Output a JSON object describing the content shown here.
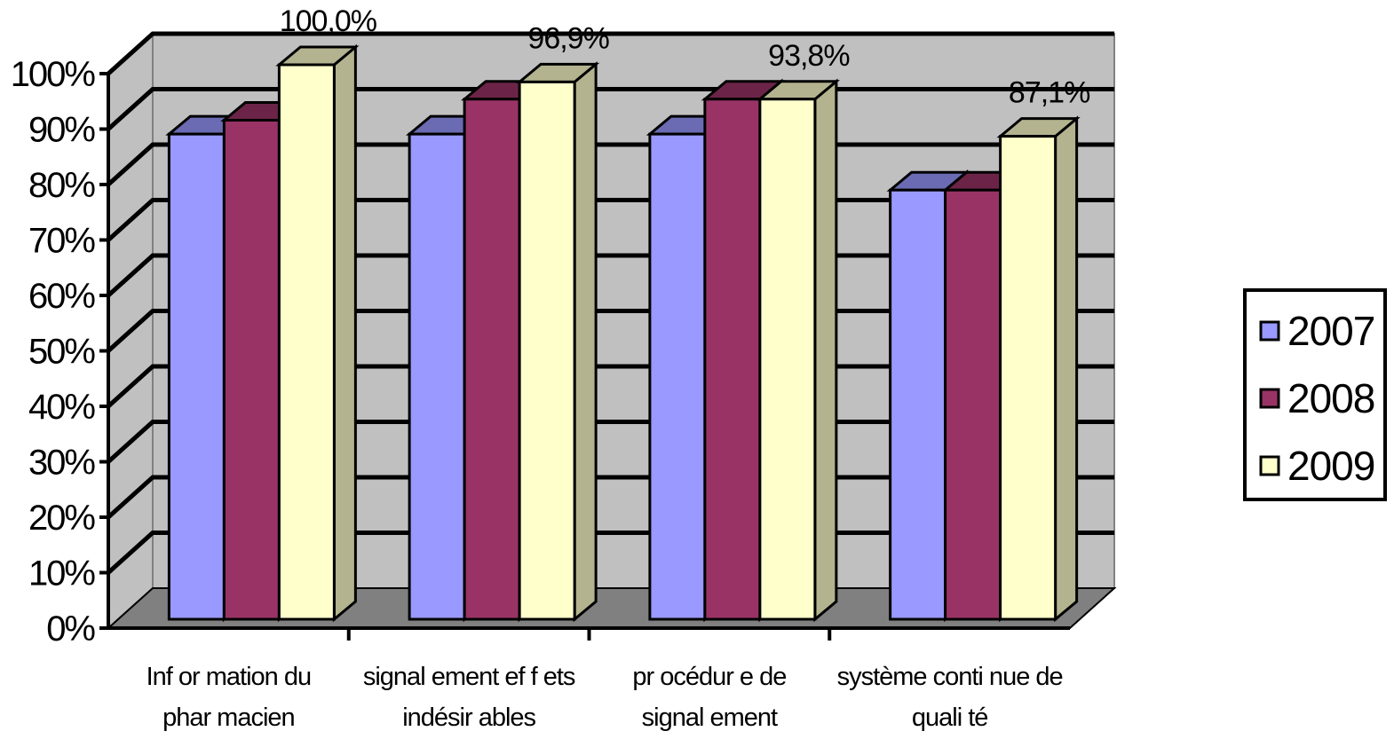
{
  "chart_data": {
    "type": "bar",
    "categories": [
      [
        "Inf or mation du",
        "phar macien"
      ],
      [
        "signal ement ef f ets",
        "indésir ables"
      ],
      [
        "pr océdur e de",
        "signal ement"
      ],
      [
        "système conti nue de",
        "quali té"
      ]
    ],
    "series": [
      {
        "name": "2007",
        "color": "#9999ff",
        "top_color": "#6b6bb3",
        "values": [
          87.5,
          87.5,
          87.5,
          77.4
        ]
      },
      {
        "name": "2008",
        "color": "#993366",
        "top_color": "#6b2447",
        "values": [
          90.0,
          93.8,
          93.8,
          77.4
        ]
      },
      {
        "name": "2009",
        "color": "#ffffcc",
        "top_color": "#b3b38f",
        "values": [
          100.0,
          96.9,
          93.8,
          87.1
        ]
      }
    ],
    "data_labels": [
      {
        "series": "2009",
        "category_index": 0,
        "text": "100,0%"
      },
      {
        "series": "2009",
        "category_index": 1,
        "text": "96,9%"
      },
      {
        "series": "2009",
        "category_index": 2,
        "text": "93,8%"
      },
      {
        "series": "2009",
        "category_index": 3,
        "text": "87,1%"
      }
    ],
    "y_ticks": [
      "0%",
      "10%",
      "20%",
      "30%",
      "40%",
      "50%",
      "60%",
      "70%",
      "80%",
      "90%",
      "100%"
    ],
    "ylim": [
      0,
      100
    ],
    "title": "",
    "xlabel": "",
    "ylabel": "",
    "grid": true,
    "legend_position": "right",
    "wall_color": "#c0c0c0",
    "floor_color": "#808080"
  }
}
